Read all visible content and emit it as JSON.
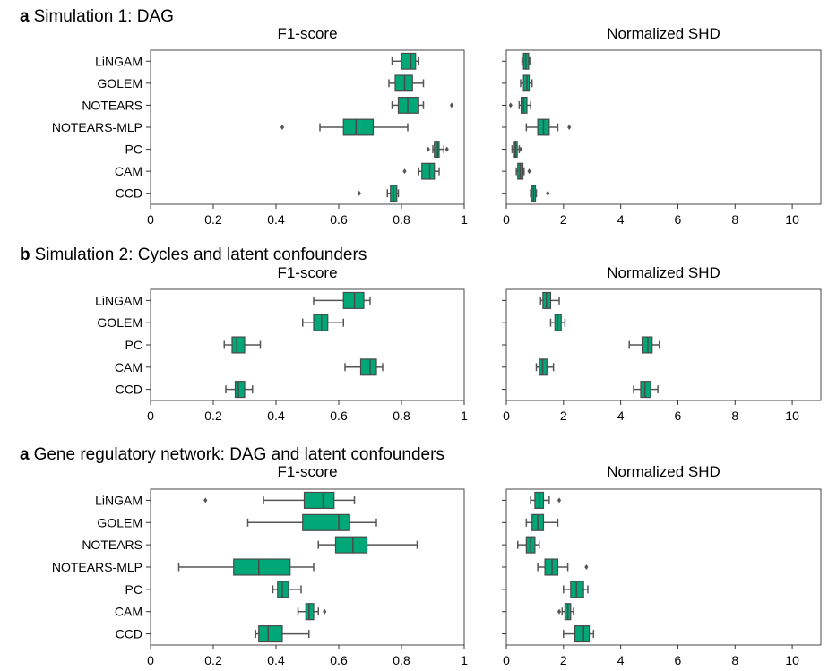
{
  "sections": [
    {
      "letter": "a",
      "title": "Simulation 1: DAG"
    },
    {
      "letter": "b",
      "title": "Simulation 2: Cycles and latent confounders"
    },
    {
      "letter": "a",
      "title": "Gene regulatory network: DAG and latent confounders"
    }
  ],
  "colors": {
    "box_fill": "#00a878",
    "box_edge": "#4a4a4a",
    "whisker": "#555555"
  },
  "chart_data": [
    {
      "type": "boxplot",
      "title": "F1-score",
      "section": 0,
      "orientation": "horizontal",
      "xlim": [
        0,
        1
      ],
      "xticks": [
        0,
        0.2,
        0.4,
        0.6,
        0.8,
        1
      ],
      "xtick_labels": [
        "0",
        "0.2",
        "0.4",
        "0.6",
        "0.8",
        "1"
      ],
      "categories": [
        "LiNGAM",
        "GOLEM",
        "NOTEARS",
        "NOTEARS-MLP",
        "PC",
        "CAM",
        "CCD"
      ],
      "boxes": [
        {
          "whislo": 0.77,
          "q1": 0.8,
          "med": 0.83,
          "q3": 0.845,
          "whishi": 0.855,
          "fliers": []
        },
        {
          "whislo": 0.76,
          "q1": 0.78,
          "med": 0.81,
          "q3": 0.835,
          "whishi": 0.87,
          "fliers": []
        },
        {
          "whislo": 0.77,
          "q1": 0.79,
          "med": 0.82,
          "q3": 0.855,
          "whishi": 0.87,
          "fliers": [
            0.96
          ]
        },
        {
          "whislo": 0.54,
          "q1": 0.615,
          "med": 0.655,
          "q3": 0.71,
          "whishi": 0.82,
          "fliers": [
            0.42
          ]
        },
        {
          "whislo": 0.9,
          "q1": 0.905,
          "med": 0.915,
          "q3": 0.92,
          "whishi": 0.935,
          "fliers": [
            0.885,
            0.945
          ]
        },
        {
          "whislo": 0.855,
          "q1": 0.865,
          "med": 0.89,
          "q3": 0.905,
          "whishi": 0.92,
          "fliers": [
            0.81
          ]
        },
        {
          "whislo": 0.755,
          "q1": 0.765,
          "med": 0.775,
          "q3": 0.785,
          "whishi": 0.79,
          "fliers": [
            0.665
          ]
        }
      ]
    },
    {
      "type": "boxplot",
      "title": "Normalized SHD",
      "section": 0,
      "orientation": "horizontal",
      "xlim": [
        0,
        11
      ],
      "xticks": [
        0,
        2,
        4,
        6,
        8,
        10
      ],
      "xtick_labels": [
        "0",
        "2",
        "4",
        "6",
        "8",
        "10"
      ],
      "categories": [
        "LiNGAM",
        "GOLEM",
        "NOTEARS",
        "NOTEARS-MLP",
        "PC",
        "CAM",
        "CCD"
      ],
      "boxes": [
        {
          "whislo": 0.55,
          "q1": 0.6,
          "med": 0.68,
          "q3": 0.78,
          "whishi": 0.82,
          "fliers": []
        },
        {
          "whislo": 0.5,
          "q1": 0.6,
          "med": 0.72,
          "q3": 0.8,
          "whishi": 0.9,
          "fliers": []
        },
        {
          "whislo": 0.45,
          "q1": 0.52,
          "med": 0.6,
          "q3": 0.72,
          "whishi": 0.85,
          "fliers": [
            0.15
          ]
        },
        {
          "whislo": 0.7,
          "q1": 1.1,
          "med": 1.3,
          "q3": 1.5,
          "whishi": 1.8,
          "fliers": [
            2.2
          ]
        },
        {
          "whislo": 0.2,
          "q1": 0.28,
          "med": 0.32,
          "q3": 0.38,
          "whishi": 0.45,
          "fliers": [
            0.5
          ]
        },
        {
          "whislo": 0.35,
          "q1": 0.4,
          "med": 0.48,
          "q3": 0.58,
          "whishi": 0.62,
          "fliers": [
            0.8
          ]
        },
        {
          "whislo": 0.85,
          "q1": 0.88,
          "med": 0.95,
          "q3": 1.02,
          "whishi": 1.05,
          "fliers": [
            1.45
          ]
        }
      ]
    },
    {
      "type": "boxplot",
      "title": "F1-score",
      "section": 1,
      "orientation": "horizontal",
      "xlim": [
        0,
        1
      ],
      "xticks": [
        0,
        0.2,
        0.4,
        0.6,
        0.8,
        1
      ],
      "xtick_labels": [
        "0",
        "0.2",
        "0.4",
        "0.6",
        "0.8",
        "1"
      ],
      "categories": [
        "LiNGAM",
        "GOLEM",
        "PC",
        "CAM",
        "CCD"
      ],
      "boxes": [
        {
          "whislo": 0.52,
          "q1": 0.615,
          "med": 0.65,
          "q3": 0.68,
          "whishi": 0.7,
          "fliers": []
        },
        {
          "whislo": 0.485,
          "q1": 0.52,
          "med": 0.545,
          "q3": 0.565,
          "whishi": 0.615,
          "fliers": []
        },
        {
          "whislo": 0.235,
          "q1": 0.26,
          "med": 0.275,
          "q3": 0.3,
          "whishi": 0.35,
          "fliers": []
        },
        {
          "whislo": 0.62,
          "q1": 0.67,
          "med": 0.7,
          "q3": 0.72,
          "whishi": 0.74,
          "fliers": []
        },
        {
          "whislo": 0.24,
          "q1": 0.27,
          "med": 0.28,
          "q3": 0.3,
          "whishi": 0.325,
          "fliers": []
        }
      ]
    },
    {
      "type": "boxplot",
      "title": "Normalized SHD",
      "section": 1,
      "orientation": "horizontal",
      "xlim": [
        0,
        11
      ],
      "xticks": [
        0,
        2,
        4,
        6,
        8,
        10
      ],
      "xtick_labels": [
        "0",
        "2",
        "4",
        "6",
        "8",
        "10"
      ],
      "categories": [
        "LiNGAM",
        "GOLEM",
        "PC",
        "CAM",
        "CCD"
      ],
      "boxes": [
        {
          "whislo": 1.2,
          "q1": 1.28,
          "med": 1.4,
          "q3": 1.55,
          "whishi": 1.85,
          "fliers": []
        },
        {
          "whislo": 1.55,
          "q1": 1.7,
          "med": 1.8,
          "q3": 1.92,
          "whishi": 2.05,
          "fliers": []
        },
        {
          "whislo": 4.3,
          "q1": 4.75,
          "med": 4.95,
          "q3": 5.1,
          "whishi": 5.35,
          "fliers": []
        },
        {
          "whislo": 1.05,
          "q1": 1.15,
          "med": 1.27,
          "q3": 1.42,
          "whishi": 1.65,
          "fliers": []
        },
        {
          "whislo": 4.45,
          "q1": 4.7,
          "med": 4.85,
          "q3": 5.05,
          "whishi": 5.3,
          "fliers": []
        }
      ]
    },
    {
      "type": "boxplot",
      "title": "F1-score",
      "section": 2,
      "orientation": "horizontal",
      "xlim": [
        0,
        1
      ],
      "xticks": [
        0,
        0.2,
        0.4,
        0.6,
        0.8,
        1
      ],
      "xtick_labels": [
        "0",
        "0.2",
        "0.4",
        "0.6",
        "0.8",
        "1"
      ],
      "categories": [
        "LiNGAM",
        "GOLEM",
        "NOTEARS",
        "NOTEARS-MLP",
        "PC",
        "CAM",
        "CCD"
      ],
      "boxes": [
        {
          "whislo": 0.36,
          "q1": 0.49,
          "med": 0.55,
          "q3": 0.585,
          "whishi": 0.65,
          "fliers": [
            0.175
          ]
        },
        {
          "whislo": 0.31,
          "q1": 0.485,
          "med": 0.6,
          "q3": 0.635,
          "whishi": 0.72,
          "fliers": []
        },
        {
          "whislo": 0.535,
          "q1": 0.59,
          "med": 0.645,
          "q3": 0.69,
          "whishi": 0.85,
          "fliers": []
        },
        {
          "whislo": 0.09,
          "q1": 0.265,
          "med": 0.345,
          "q3": 0.445,
          "whishi": 0.52,
          "fliers": []
        },
        {
          "whislo": 0.39,
          "q1": 0.405,
          "med": 0.42,
          "q3": 0.44,
          "whishi": 0.48,
          "fliers": []
        },
        {
          "whislo": 0.47,
          "q1": 0.495,
          "med": 0.505,
          "q3": 0.52,
          "whishi": 0.535,
          "fliers": [
            0.555
          ]
        },
        {
          "whislo": 0.335,
          "q1": 0.345,
          "med": 0.375,
          "q3": 0.42,
          "whishi": 0.505,
          "fliers": []
        }
      ]
    },
    {
      "type": "boxplot",
      "title": "Normalized SHD",
      "section": 2,
      "orientation": "horizontal",
      "xlim": [
        0,
        11
      ],
      "xticks": [
        0,
        2,
        4,
        6,
        8,
        10
      ],
      "xtick_labels": [
        "0",
        "2",
        "4",
        "6",
        "8",
        "10"
      ],
      "categories": [
        "LiNGAM",
        "GOLEM",
        "NOTEARS",
        "NOTEARS-MLP",
        "PC",
        "CAM",
        "CCD"
      ],
      "boxes": [
        {
          "whislo": 0.85,
          "q1": 1.0,
          "med": 1.15,
          "q3": 1.3,
          "whishi": 1.5,
          "fliers": [
            1.85
          ]
        },
        {
          "whislo": 0.7,
          "q1": 0.9,
          "med": 1.1,
          "q3": 1.3,
          "whishi": 1.8,
          "fliers": []
        },
        {
          "whislo": 0.4,
          "q1": 0.7,
          "med": 0.85,
          "q3": 1.0,
          "whishi": 1.15,
          "fliers": []
        },
        {
          "whislo": 1.1,
          "q1": 1.35,
          "med": 1.6,
          "q3": 1.8,
          "whishi": 2.15,
          "fliers": [
            2.8
          ]
        },
        {
          "whislo": 2.0,
          "q1": 2.25,
          "med": 2.45,
          "q3": 2.7,
          "whishi": 2.85,
          "fliers": []
        },
        {
          "whislo": 1.95,
          "q1": 2.05,
          "med": 2.15,
          "q3": 2.25,
          "whishi": 2.35,
          "fliers": [
            1.85
          ]
        },
        {
          "whislo": 2.0,
          "q1": 2.4,
          "med": 2.7,
          "q3": 2.9,
          "whishi": 3.05,
          "fliers": []
        }
      ]
    }
  ]
}
